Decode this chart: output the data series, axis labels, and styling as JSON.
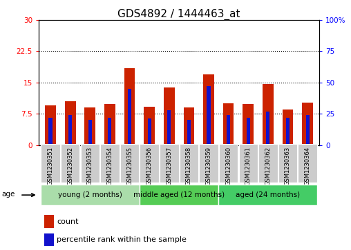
{
  "title": "GDS4892 / 1444463_at",
  "samples": [
    "GSM1230351",
    "GSM1230352",
    "GSM1230353",
    "GSM1230354",
    "GSM1230355",
    "GSM1230356",
    "GSM1230357",
    "GSM1230358",
    "GSM1230359",
    "GSM1230360",
    "GSM1230361",
    "GSM1230362",
    "GSM1230363",
    "GSM1230364"
  ],
  "count_values": [
    9.5,
    10.5,
    9.0,
    9.8,
    18.5,
    9.2,
    13.8,
    9.0,
    17.0,
    10.0,
    9.8,
    14.6,
    8.5,
    10.2
  ],
  "percentile_values": [
    22,
    24,
    20,
    22,
    45,
    21,
    28,
    20,
    47,
    24,
    22,
    27,
    22,
    24
  ],
  "bar_color": "#cc2200",
  "percentile_color": "#1111cc",
  "ylim_left": [
    0,
    30
  ],
  "ylim_right": [
    0,
    100
  ],
  "yticks_left": [
    0,
    7.5,
    15,
    22.5,
    30
  ],
  "ytick_labels_left": [
    "0",
    "7.5",
    "15",
    "22.5",
    "30"
  ],
  "yticks_right": [
    0,
    25,
    50,
    75,
    100
  ],
  "ytick_labels_right": [
    "0",
    "25",
    "50",
    "75",
    "100%"
  ],
  "groups": [
    {
      "label": "young (2 months)",
      "indices": [
        0,
        1,
        2,
        3,
        4
      ],
      "color": "#aaddaa"
    },
    {
      "label": "middle aged (12 months)",
      "indices": [
        5,
        6,
        7,
        8
      ],
      "color": "#55cc55"
    },
    {
      "label": "aged (24 months)",
      "indices": [
        9,
        10,
        11,
        12,
        13
      ],
      "color": "#44cc66"
    }
  ],
  "group_label": "age",
  "legend_count_label": "count",
  "legend_percentile_label": "percentile rank within the sample",
  "bar_width": 0.55,
  "perc_bar_width": 0.18,
  "title_fontsize": 11,
  "tick_fontsize": 7.5,
  "sample_fontsize": 6,
  "group_fontsize": 7.5,
  "legend_fontsize": 8,
  "background_color": "#ffffff",
  "dotted_lines": [
    7.5,
    15,
    22.5
  ]
}
